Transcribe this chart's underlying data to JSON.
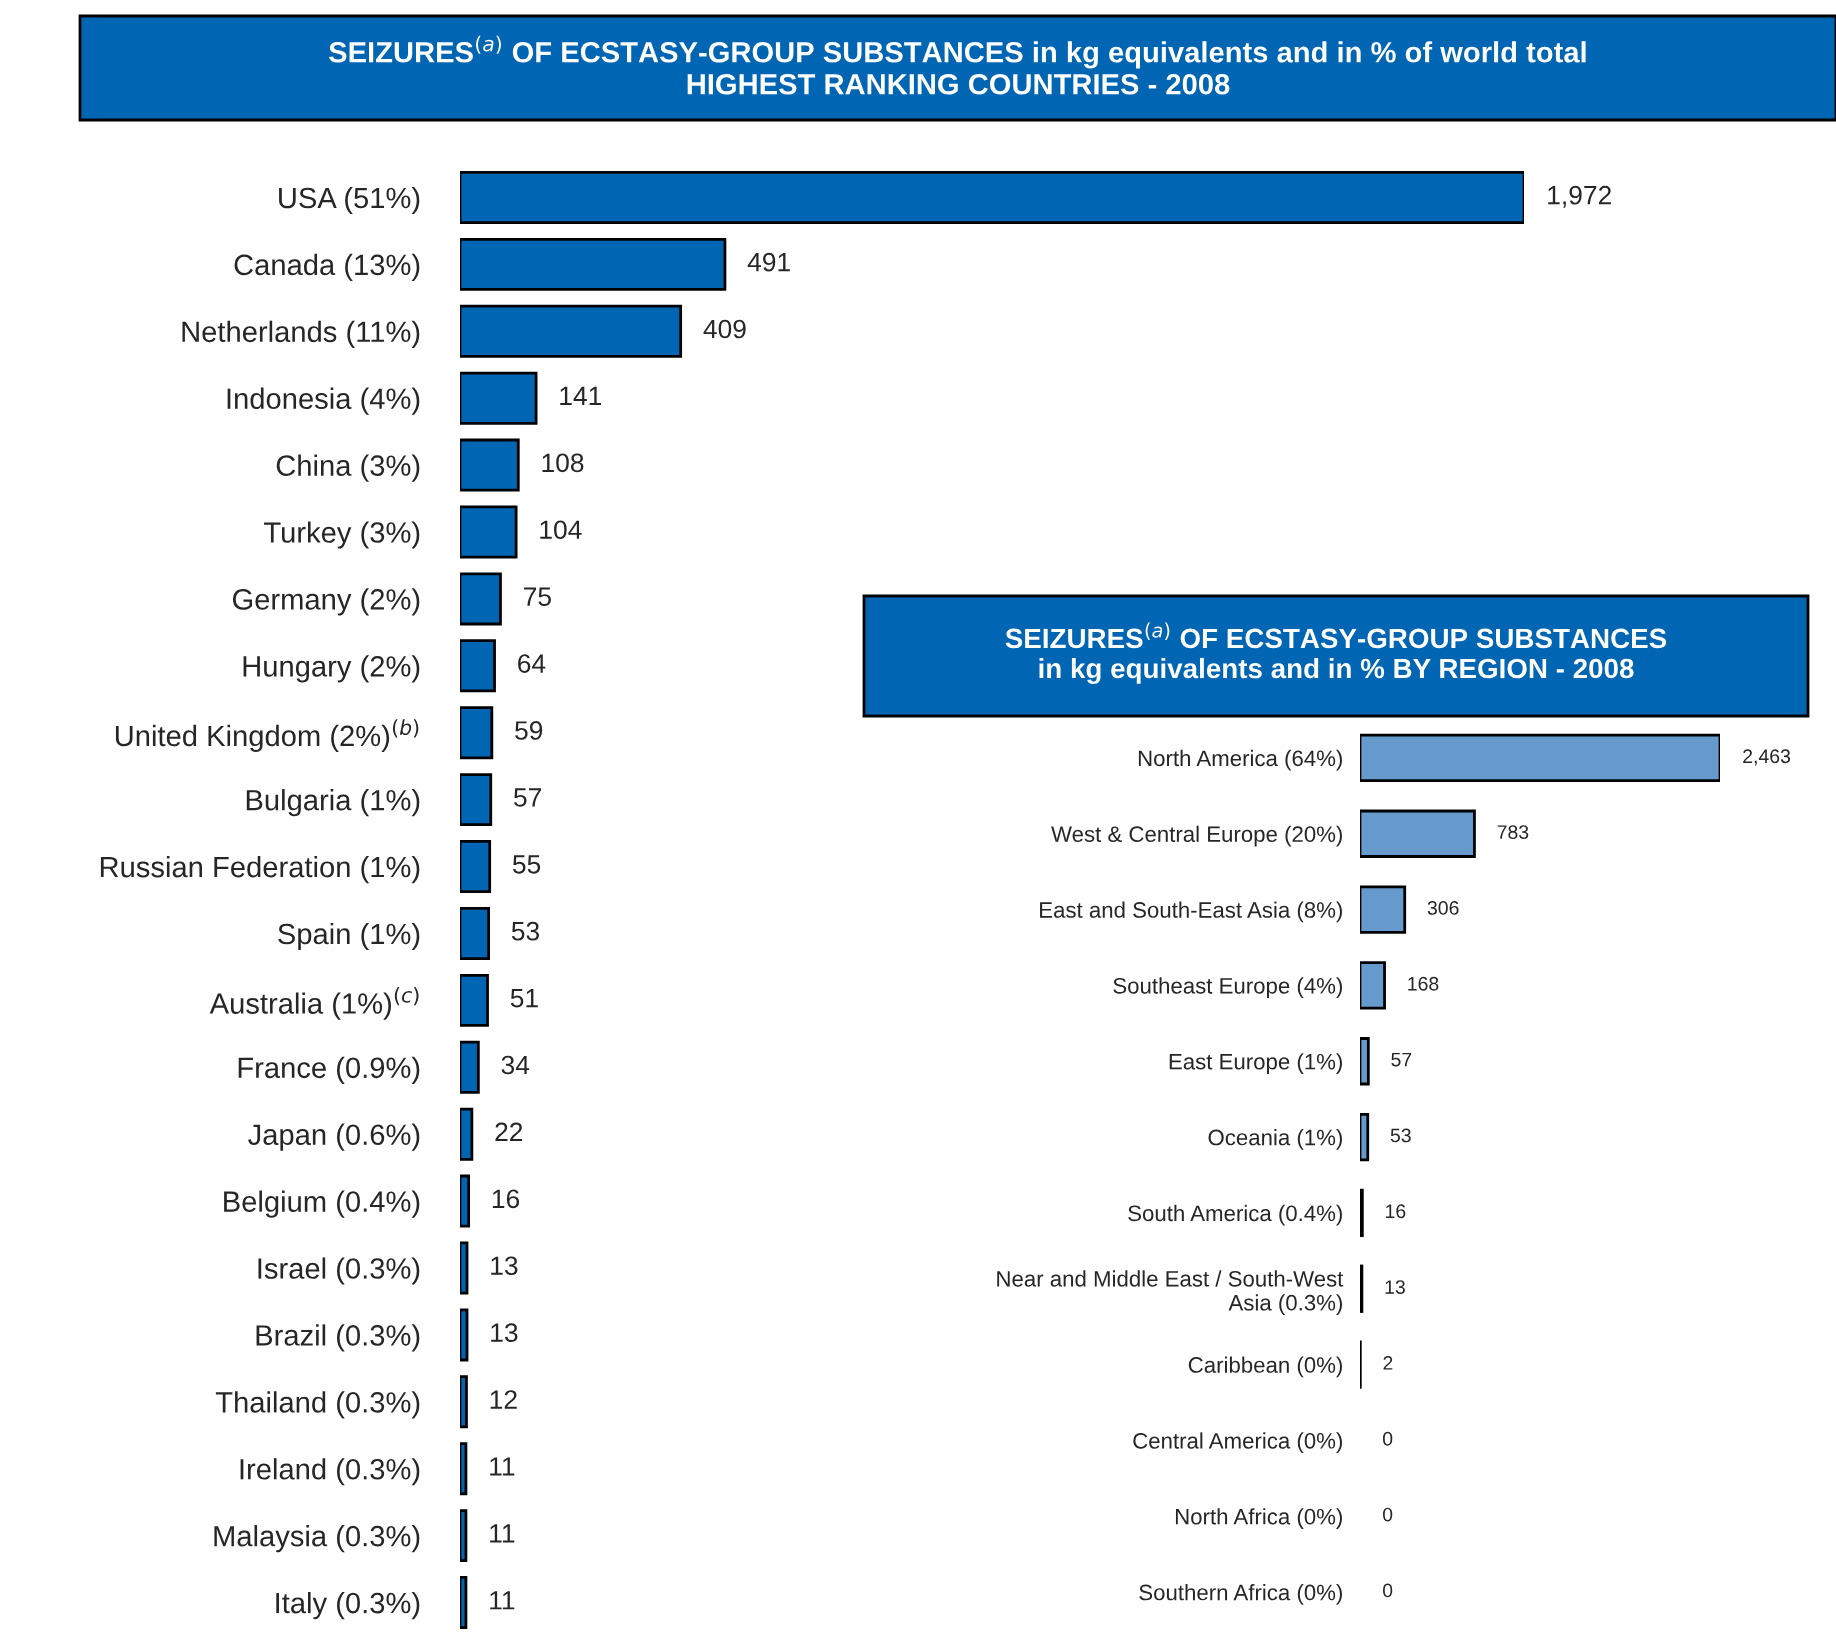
{
  "chart_data": [
    {
      "type": "bar",
      "orientation": "horizontal",
      "title": "SEIZURES$^{(a)}$ OF ECSTASY-GROUP SUBSTANCES in kg equivalents and in % of world total\nHIGHEST RANKING COUNTRIES - 2008",
      "categories": [
        "USA (51%)",
        "Canada (13%)",
        "Netherlands (11%)",
        "Indonesia (4%)",
        "China (3%)",
        "Turkey (3%)",
        "Germany (2%)",
        "Hungary (2%)",
        "United Kingdom (2%)$^{(b)}$",
        "Bulgaria (1%)",
        "Russian Federation (1%)",
        "Spain (1%)",
        "Australia (1%)$^{(c)}$",
        "France (0.9%)",
        "Japan (0.6%)",
        "Belgium (0.4%)",
        "Israel (0.3%)",
        "Brazil (0.3%)",
        "Thailand (0.3%)",
        "Ireland (0.3%)",
        "Malaysia (0.3%)",
        "Italy (0.3%)"
      ],
      "values": [
        1972,
        491,
        409,
        141,
        108,
        104,
        75,
        64,
        59,
        57,
        55,
        53,
        51,
        34,
        22,
        16,
        13,
        13,
        12,
        11,
        11,
        11
      ],
      "value_labels": [
        "1,972",
        "491",
        "409",
        "141",
        "108",
        "104",
        "75",
        "64",
        "59",
        "57",
        "55",
        "53",
        "51",
        "34",
        "22",
        "16",
        "13",
        "13",
        "12",
        "11",
        "11",
        "11"
      ],
      "color": "#0066b3"
    },
    {
      "type": "bar",
      "orientation": "horizontal",
      "title": "SEIZURES$^{(a)}$ OF ECSTASY-GROUP SUBSTANCES\nin kg equivalents and in % BY REGION - 2008",
      "categories": [
        "North America (64%)",
        "West & Central Europe (20%)",
        "East and South-East Asia (8%)",
        "Southeast Europe (4%)",
        "East Europe (1%)",
        "Oceania (1%)",
        "South America (0.4%)",
        "Near and Middle East / South-West\nAsia (0.3%)",
        "Caribbean (0%)",
        "Central America (0%)",
        "North Africa (0%)",
        "Southern Africa (0%)"
      ],
      "values": [
        2463,
        783,
        306,
        168,
        57,
        53,
        16,
        13,
        2,
        0,
        0,
        0
      ],
      "value_labels": [
        "2,463",
        "783",
        "306",
        "168",
        "57",
        "53",
        "16",
        "13",
        "2",
        "0",
        "0",
        "0"
      ],
      "color": "#6699cc"
    }
  ]
}
